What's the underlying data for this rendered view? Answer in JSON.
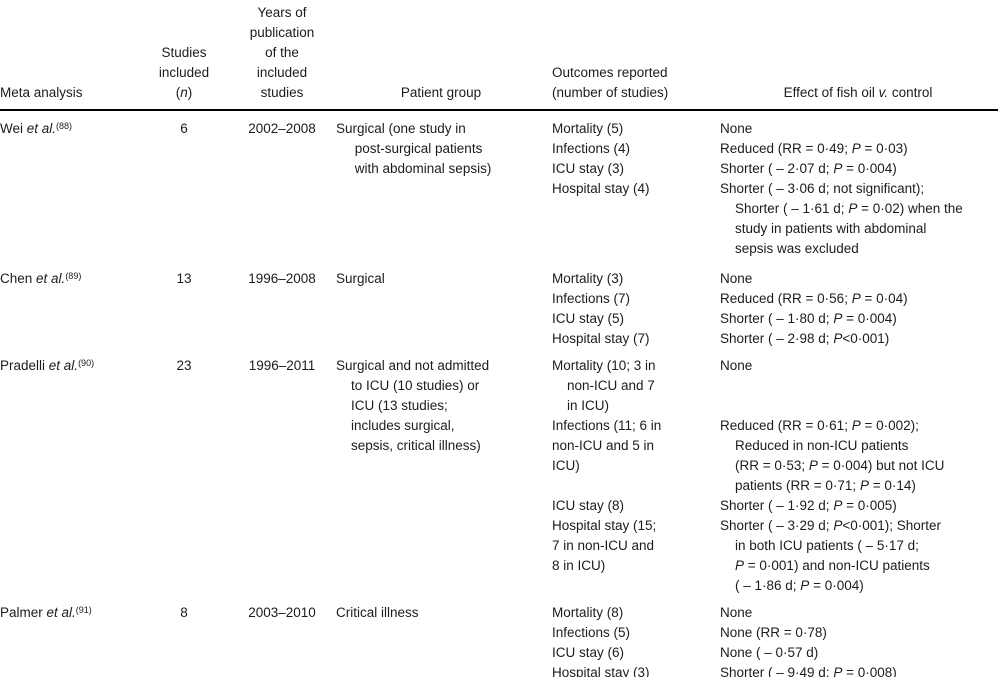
{
  "header": {
    "meta_lines": [
      "Meta analysis"
    ],
    "n_lines": [
      "Studies",
      "included",
      "(<i>n</i>)"
    ],
    "years_lines": [
      "Years of",
      "publication",
      "of the",
      "included",
      "studies"
    ],
    "patient_lines": [
      "Patient group"
    ],
    "outcomes_lines": [
      "Outcomes reported",
      "(number of studies)"
    ],
    "effect_lines": [
      "Effect of fish oil <i>v.</i> control"
    ]
  },
  "rows": [
    {
      "meta_html": "Wei <i>et al.</i><sup>(88)</sup>",
      "n": "6",
      "years": "2002–2008",
      "patient_lines": [
        "Surgical (one study in",
        "     post-surgical patients",
        "     with abdominal sepsis)"
      ],
      "outcomes_lines": [
        "Mortality (5)",
        "Infections (4)",
        "ICU stay (3)",
        "Hospital stay (4)"
      ],
      "effect_lines": [
        "None",
        "Reduced (RR = 0·49; <i>P</i> = 0·03)",
        "Shorter ( – 2·07 d; <i>P</i> = 0·004)",
        "Shorter ( – 3·06 d; not significant);",
        "    Shorter ( – 1·61 d; <i>P</i> = 0·02) when the",
        "    study in patients with abdominal",
        "    sepsis was excluded"
      ]
    },
    {
      "meta_html": "Chen <i>et al.</i><sup>(89)</sup>",
      "n": "13",
      "years": "1996–2008",
      "patient_lines": [
        "Surgical"
      ],
      "outcomes_lines": [
        "Mortality (3)",
        "Infections (7)",
        "ICU stay (5)",
        "Hospital stay (7)"
      ],
      "effect_lines": [
        "None",
        "Reduced (RR = 0·56; <i>P</i> = 0·04)",
        "Shorter ( – 1·80 d; <i>P</i> = 0·004)",
        "Shorter ( – 2·98 d; <i>P</i><0·001)"
      ]
    },
    {
      "meta_html": "Pradelli <i>et al.</i><sup>(90)</sup>",
      "n": "23",
      "years": "1996–2011",
      "patient_lines": [
        "Surgical and not admitted",
        "    to ICU (10 studies) or",
        "    ICU (13 studies;",
        "    includes surgical,",
        "    sepsis, critical illness)"
      ],
      "outcomes_lines": [
        "Mortality (10; 3 in",
        "    non-ICU and 7",
        "    in ICU)",
        "Infections (11; 6 in",
        "non-ICU and 5 in",
        "ICU)",
        "",
        "ICU stay (8)",
        "Hospital stay (15;",
        "7 in non-ICU and",
        "8 in ICU)"
      ],
      "effect_lines": [
        "None",
        "",
        "",
        "Reduced (RR = 0·61; <i>P</i> = 0·002);",
        "    Reduced in non-ICU patients",
        "    (RR = 0·53; <i>P</i> = 0·004) but not ICU",
        "    patients (RR = 0·71; <i>P</i> = 0·14)",
        "Shorter ( – 1·92 d; <i>P</i> = 0·005)",
        "Shorter ( – 3·29 d; <i>P</i><0·001); Shorter",
        "    in both ICU patients ( – 5·17 d;",
        "    <i>P</i> = 0·001) and non-ICU patients",
        "    ( – 1·86 d; <i>P</i> = 0·004)"
      ]
    },
    {
      "meta_html": "Palmer <i>et al.</i><sup>(91)</sup>",
      "n": "8",
      "years": "2003–2010",
      "patient_lines": [
        "Critical illness"
      ],
      "outcomes_lines": [
        "Mortality (8)",
        "Infections (5)",
        "ICU stay (6)",
        "Hospital stay (3)"
      ],
      "effect_lines": [
        "None",
        "None (RR = 0·78)",
        "None ( – 0·57 d)",
        "Shorter ( – 9·49 d; <i>P</i> = 0·008)"
      ]
    }
  ]
}
